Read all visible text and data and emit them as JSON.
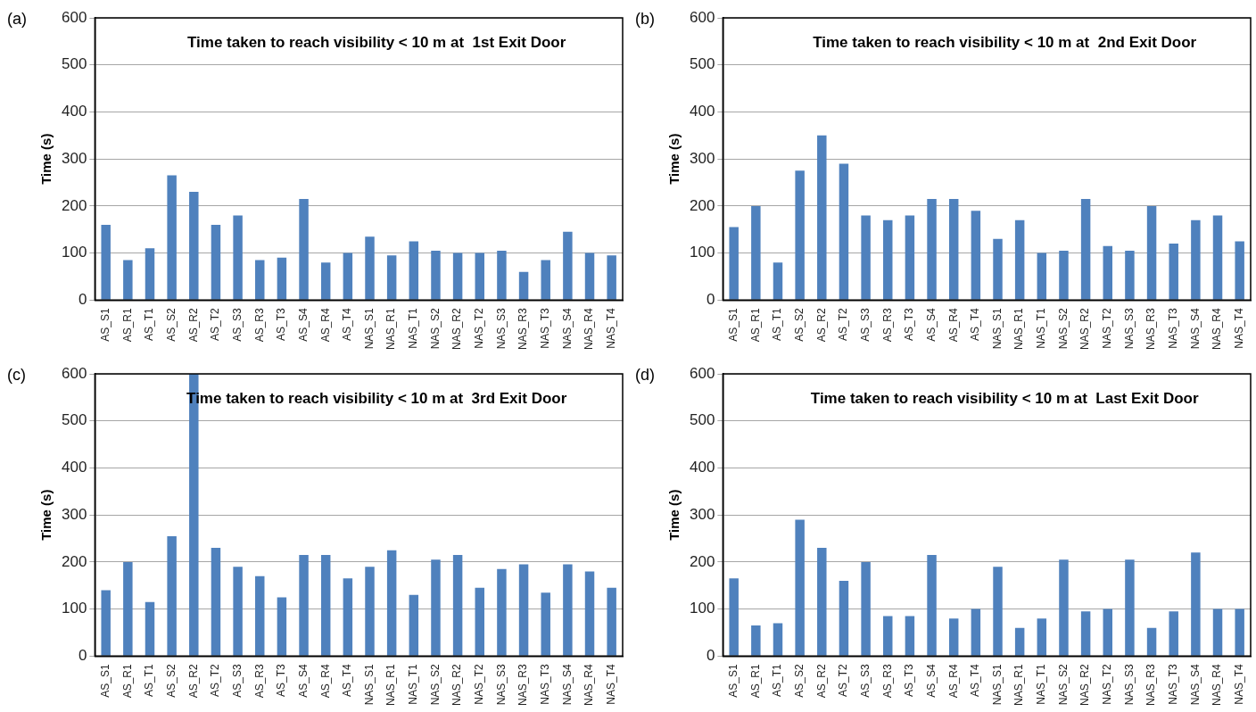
{
  "chart_data": [
    {
      "type": "bar",
      "title": "Time taken to reach visibility < 10 m at  1st Exit Door",
      "ylabel": "Time (s)",
      "annotations": [
        "(a)"
      ],
      "categories": [
        "AS_S1",
        "AS_R1",
        "AS_T1",
        "AS_S2",
        "AS_R2",
        "AS_T2",
        "AS_S3",
        "AS_R3",
        "AS_T3",
        "AS_S4",
        "AS_R4",
        "AS_T4",
        "NAS_S1",
        "NAS_R1",
        "NAS_T1",
        "NAS_S2",
        "NAS_R2",
        "NAS_T2",
        "NAS_S3",
        "NAS_R3",
        "NAS_T3",
        "NAS_S4",
        "NAS_R4",
        "NAS_T4"
      ],
      "values": [
        160,
        85,
        110,
        265,
        230,
        160,
        180,
        85,
        90,
        215,
        80,
        100,
        135,
        95,
        125,
        105,
        100,
        100,
        105,
        60,
        85,
        145,
        100,
        95
      ],
      "color": "#4f81bd",
      "ylim": [
        0,
        600
      ],
      "yticks": [
        0,
        100,
        200,
        300,
        400,
        500,
        600
      ],
      "grid": "y",
      "legend": false
    },
    {
      "type": "bar",
      "title": "Time taken to reach visibility < 10 m at  2nd Exit Door",
      "ylabel": "Time (s)",
      "annotations": [
        "(b)"
      ],
      "categories": [
        "AS_S1",
        "AS_R1",
        "AS_T1",
        "AS_S2",
        "AS_R2",
        "AS_T2",
        "AS_S3",
        "AS_R3",
        "AS_T3",
        "AS_S4",
        "AS_R4",
        "AS_T4",
        "NAS_S1",
        "NAS_R1",
        "NAS_T1",
        "NAS_S2",
        "NAS_R2",
        "NAS_T2",
        "NAS_S3",
        "NAS_R3",
        "NAS_T3",
        "NAS_S4",
        "NAS_R4",
        "NAS_T4"
      ],
      "values": [
        155,
        200,
        80,
        275,
        350,
        290,
        180,
        170,
        180,
        215,
        215,
        190,
        130,
        170,
        100,
        105,
        215,
        115,
        105,
        200,
        120,
        170,
        180,
        125
      ],
      "color": "#4f81bd",
      "ylim": [
        0,
        600
      ],
      "yticks": [
        0,
        100,
        200,
        300,
        400,
        500,
        600
      ],
      "grid": "y",
      "legend": false
    },
    {
      "type": "bar",
      "title": "Time taken to reach visibility < 10 m at  3rd Exit Door",
      "ylabel": "Time (s)",
      "annotations": [
        "(c)"
      ],
      "categories": [
        "AS_S1",
        "AS_R1",
        "AS_T1",
        "AS_S2",
        "AS_R2",
        "AS_T2",
        "AS_S3",
        "AS_R3",
        "AS_T3",
        "AS_S4",
        "AS_R4",
        "AS_T4",
        "NAS_S1",
        "NAS_R1",
        "NAS_T1",
        "NAS_S2",
        "NAS_R2",
        "NAS_T2",
        "NAS_S3",
        "NAS_R3",
        "NAS_T3",
        "NAS_S4",
        "NAS_R4",
        "NAS_T4"
      ],
      "values": [
        140,
        200,
        115,
        255,
        600,
        230,
        190,
        170,
        125,
        215,
        215,
        165,
        190,
        225,
        130,
        205,
        215,
        145,
        185,
        195,
        135,
        195,
        180,
        145
      ],
      "color": "#4f81bd",
      "ylim": [
        0,
        600
      ],
      "yticks": [
        0,
        100,
        200,
        300,
        400,
        500,
        600
      ],
      "grid": "y",
      "legend": false
    },
    {
      "type": "bar",
      "title": "Time taken to reach visibility < 10 m at  Last Exit Door",
      "ylabel": "Time (s)",
      "annotations": [
        "(d)"
      ],
      "categories": [
        "AS_S1",
        "AS_R1",
        "AS_T1",
        "AS_S2",
        "AS_R2",
        "AS_T2",
        "AS_S3",
        "AS_R3",
        "AS_T3",
        "AS_S4",
        "AS_R4",
        "AS_T4",
        "NAS_S1",
        "NAS_R1",
        "NAS_T1",
        "NAS_S2",
        "NAS_R2",
        "NAS_T2",
        "NAS_S3",
        "NAS_R3",
        "NAS_T3",
        "NAS_S4",
        "NAS_R4",
        "NAS_T4"
      ],
      "values": [
        165,
        65,
        70,
        290,
        230,
        160,
        200,
        85,
        85,
        215,
        80,
        100,
        190,
        60,
        80,
        205,
        95,
        100,
        205,
        60,
        95,
        220,
        100,
        100
      ],
      "color": "#4f81bd",
      "ylim": [
        0,
        600
      ],
      "yticks": [
        0,
        100,
        200,
        300,
        400,
        500,
        600
      ],
      "grid": "y",
      "legend": false
    }
  ]
}
